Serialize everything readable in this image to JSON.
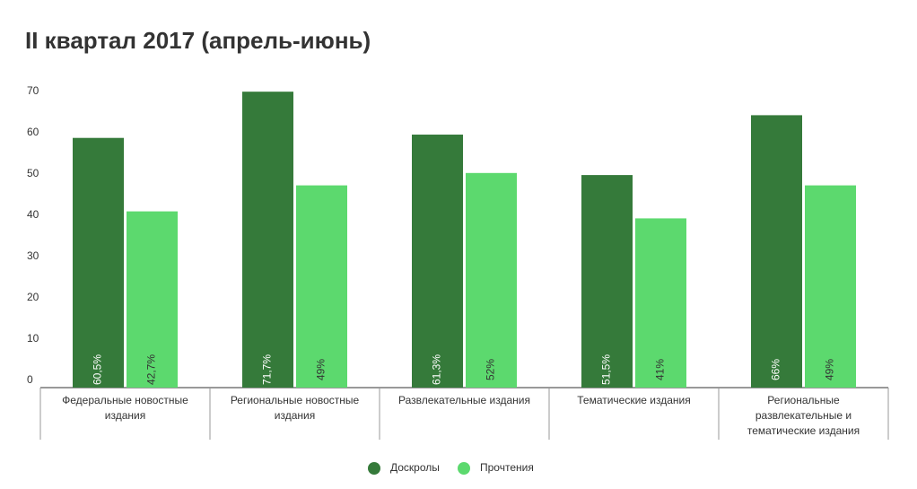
{
  "chart_data": {
    "type": "bar",
    "title": "II квартал 2017 (апрель-июнь)",
    "categories": [
      "Федеральные новостные издания",
      "Региональные новостные издания",
      "Развлекательные издания",
      "Тематические издания",
      "Региональные развлекательные и тематические издания"
    ],
    "series": [
      {
        "name": "Доскролы",
        "color": "#357a3a",
        "values": [
          60.5,
          71.7,
          61.3,
          51.5,
          66
        ],
        "value_labels": [
          "60,5%",
          "71,7%",
          "61,3%",
          "51,5%",
          "66%"
        ]
      },
      {
        "name": "Прочтения",
        "color": "#5cd96e",
        "values": [
          42.7,
          49,
          52,
          41,
          49
        ],
        "value_labels": [
          "42,7%",
          "49%",
          "52%",
          "41%",
          "49%"
        ]
      }
    ],
    "ylim": [
      0,
      70
    ],
    "yticks": [
      0,
      10,
      20,
      30,
      40,
      50,
      60,
      70
    ],
    "grid": false
  }
}
